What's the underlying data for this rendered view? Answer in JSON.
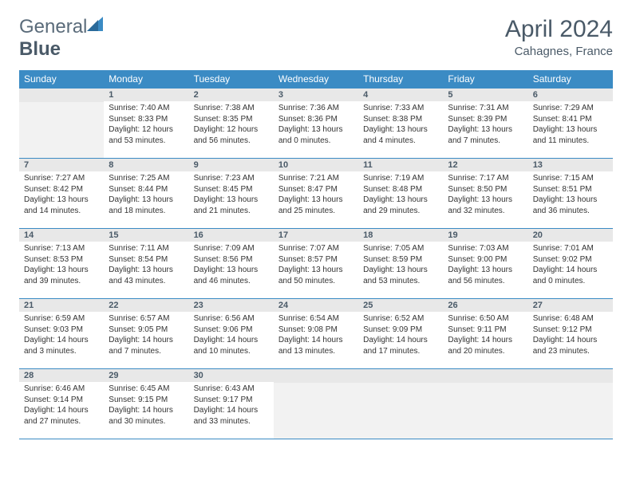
{
  "brand": {
    "part1": "General",
    "part2": "Blue"
  },
  "title": "April 2024",
  "location": "Cahagnes, France",
  "colors": {
    "header_bg": "#3b8bc4",
    "header_text": "#ffffff",
    "divider": "#3b8bc4",
    "daynum_bg": "#e8e8e8",
    "empty_bg": "#f2f2f2",
    "text": "#333333",
    "brand_text": "#5a6b7a"
  },
  "weekdays": [
    "Sunday",
    "Monday",
    "Tuesday",
    "Wednesday",
    "Thursday",
    "Friday",
    "Saturday"
  ],
  "weeks": [
    [
      null,
      {
        "n": "1",
        "sr": "7:40 AM",
        "ss": "8:33 PM",
        "dl": "12 hours and 53 minutes."
      },
      {
        "n": "2",
        "sr": "7:38 AM",
        "ss": "8:35 PM",
        "dl": "12 hours and 56 minutes."
      },
      {
        "n": "3",
        "sr": "7:36 AM",
        "ss": "8:36 PM",
        "dl": "13 hours and 0 minutes."
      },
      {
        "n": "4",
        "sr": "7:33 AM",
        "ss": "8:38 PM",
        "dl": "13 hours and 4 minutes."
      },
      {
        "n": "5",
        "sr": "7:31 AM",
        "ss": "8:39 PM",
        "dl": "13 hours and 7 minutes."
      },
      {
        "n": "6",
        "sr": "7:29 AM",
        "ss": "8:41 PM",
        "dl": "13 hours and 11 minutes."
      }
    ],
    [
      {
        "n": "7",
        "sr": "7:27 AM",
        "ss": "8:42 PM",
        "dl": "13 hours and 14 minutes."
      },
      {
        "n": "8",
        "sr": "7:25 AM",
        "ss": "8:44 PM",
        "dl": "13 hours and 18 minutes."
      },
      {
        "n": "9",
        "sr": "7:23 AM",
        "ss": "8:45 PM",
        "dl": "13 hours and 21 minutes."
      },
      {
        "n": "10",
        "sr": "7:21 AM",
        "ss": "8:47 PM",
        "dl": "13 hours and 25 minutes."
      },
      {
        "n": "11",
        "sr": "7:19 AM",
        "ss": "8:48 PM",
        "dl": "13 hours and 29 minutes."
      },
      {
        "n": "12",
        "sr": "7:17 AM",
        "ss": "8:50 PM",
        "dl": "13 hours and 32 minutes."
      },
      {
        "n": "13",
        "sr": "7:15 AM",
        "ss": "8:51 PM",
        "dl": "13 hours and 36 minutes."
      }
    ],
    [
      {
        "n": "14",
        "sr": "7:13 AM",
        "ss": "8:53 PM",
        "dl": "13 hours and 39 minutes."
      },
      {
        "n": "15",
        "sr": "7:11 AM",
        "ss": "8:54 PM",
        "dl": "13 hours and 43 minutes."
      },
      {
        "n": "16",
        "sr": "7:09 AM",
        "ss": "8:56 PM",
        "dl": "13 hours and 46 minutes."
      },
      {
        "n": "17",
        "sr": "7:07 AM",
        "ss": "8:57 PM",
        "dl": "13 hours and 50 minutes."
      },
      {
        "n": "18",
        "sr": "7:05 AM",
        "ss": "8:59 PM",
        "dl": "13 hours and 53 minutes."
      },
      {
        "n": "19",
        "sr": "7:03 AM",
        "ss": "9:00 PM",
        "dl": "13 hours and 56 minutes."
      },
      {
        "n": "20",
        "sr": "7:01 AM",
        "ss": "9:02 PM",
        "dl": "14 hours and 0 minutes."
      }
    ],
    [
      {
        "n": "21",
        "sr": "6:59 AM",
        "ss": "9:03 PM",
        "dl": "14 hours and 3 minutes."
      },
      {
        "n": "22",
        "sr": "6:57 AM",
        "ss": "9:05 PM",
        "dl": "14 hours and 7 minutes."
      },
      {
        "n": "23",
        "sr": "6:56 AM",
        "ss": "9:06 PM",
        "dl": "14 hours and 10 minutes."
      },
      {
        "n": "24",
        "sr": "6:54 AM",
        "ss": "9:08 PM",
        "dl": "14 hours and 13 minutes."
      },
      {
        "n": "25",
        "sr": "6:52 AM",
        "ss": "9:09 PM",
        "dl": "14 hours and 17 minutes."
      },
      {
        "n": "26",
        "sr": "6:50 AM",
        "ss": "9:11 PM",
        "dl": "14 hours and 20 minutes."
      },
      {
        "n": "27",
        "sr": "6:48 AM",
        "ss": "9:12 PM",
        "dl": "14 hours and 23 minutes."
      }
    ],
    [
      {
        "n": "28",
        "sr": "6:46 AM",
        "ss": "9:14 PM",
        "dl": "14 hours and 27 minutes."
      },
      {
        "n": "29",
        "sr": "6:45 AM",
        "ss": "9:15 PM",
        "dl": "14 hours and 30 minutes."
      },
      {
        "n": "30",
        "sr": "6:43 AM",
        "ss": "9:17 PM",
        "dl": "14 hours and 33 minutes."
      },
      null,
      null,
      null,
      null
    ]
  ],
  "labels": {
    "sunrise": "Sunrise:",
    "sunset": "Sunset:",
    "daylight": "Daylight:"
  }
}
